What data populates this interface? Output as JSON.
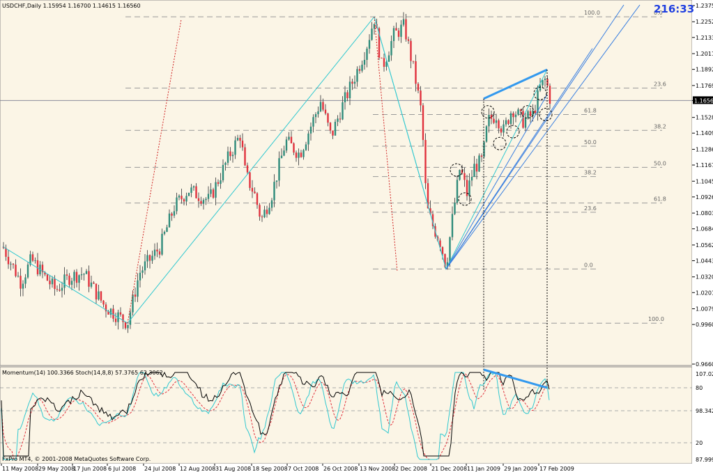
{
  "header": {
    "symbol_line": "USDCHF,Daily  1.15954 1.16700 1.14615 1.16560",
    "timer": "216:33",
    "indicator_line": "Momentum(14) 100.3366  Stoch(14,8,8) 57.3765 62.3062",
    "copyright": "FxPro MT4, © 2001-2008 MetaQuotes Software Corp."
  },
  "colors": {
    "background": "#FBF5E6",
    "bull_candle": "#2E8B7A",
    "bear_candle": "#E0303C",
    "wick": "#555555",
    "zigzag": "#30C8D0",
    "trend_blue": "#3A7FE0",
    "divergence": "#3399EE",
    "momentum": "#000000",
    "stoch_main": "#30C8D0",
    "stoch_signal": "#E0303C",
    "timer": "#1F3FE0"
  },
  "chart_data": {
    "type": "candlestick",
    "ylim": [
      0.966,
      1.2375
    ],
    "y_ticks": [
      "1.23750",
      "1.22525",
      "1.21335",
      "1.20110",
      "1.18920",
      "1.17695",
      "1.16560",
      "1.15280",
      "1.14090",
      "1.12865",
      "1.11675",
      "1.10450",
      "1.09260",
      "1.08035",
      "1.06845",
      "1.05620",
      "1.04430",
      "1.03205",
      "1.02015",
      "1.00790",
      "0.99600",
      "0.96600"
    ],
    "current_price": "1.16560",
    "x_ticks": [
      "11 May 2008",
      "29 May 2008",
      "17 Jun 2008",
      "6 Jul 2008",
      "24 Jul 2008",
      "12 Aug 2008",
      "31 Aug 2008",
      "18 Sep 2008",
      "7 Oct 2008",
      "26 Oct 2008",
      "13 Nov 2008",
      "2 Dec 2008",
      "21 Dec 2008",
      "11 Jan 2009",
      "29 Jan 2009",
      "17 Feb 2009"
    ],
    "key_points": [
      {
        "date": "11 May 2008",
        "price": 1.05
      },
      {
        "date": "6 Jul 2008",
        "price": 0.9975
      },
      {
        "date": "13 Nov 2008",
        "price": 1.23
      },
      {
        "date": "21 Dec 2008",
        "price": 1.038
      },
      {
        "date": "17 Feb 2009",
        "price": 1.189
      }
    ],
    "fib_levels_upper": [
      {
        "label": "0.0",
        "price": 1.229
      },
      {
        "label": "23.6",
        "price": 1.175
      },
      {
        "label": "61.8",
        "price": 1.155
      },
      {
        "label": "38.2",
        "price": 1.143
      },
      {
        "label": "50.0",
        "price": 1.131
      },
      {
        "label": "50.0",
        "price": 1.115
      },
      {
        "label": "38.2",
        "price": 1.108
      },
      {
        "label": "61.8",
        "price": 1.088
      },
      {
        "label": "23.6",
        "price": 1.081
      },
      {
        "label": "0.0",
        "price": 1.038
      },
      {
        "label": "100.0",
        "price": 0.997
      }
    ],
    "fib_top_label": "100.0",
    "indicator_ticks": [
      "107.028",
      "80",
      "98.3425",
      "20",
      "87.9999"
    ]
  }
}
